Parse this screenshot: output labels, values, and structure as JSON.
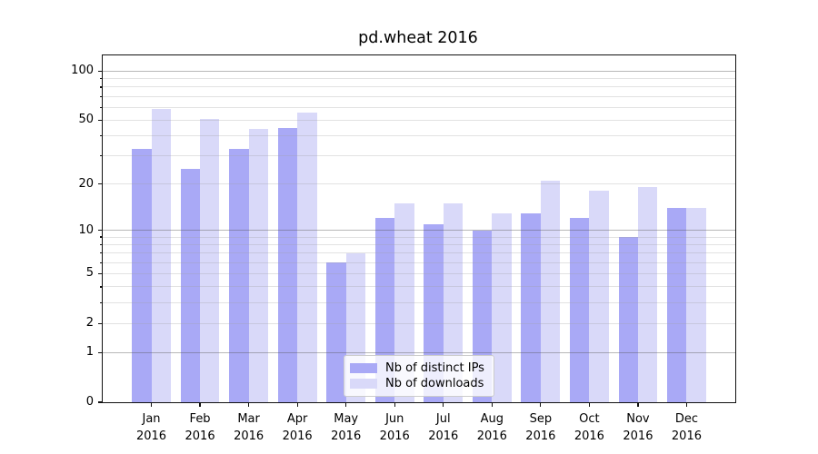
{
  "chart_data": {
    "type": "bar",
    "title": "pd.wheat 2016",
    "year": "2016",
    "categories": [
      "Jan",
      "Feb",
      "Mar",
      "Apr",
      "May",
      "Jun",
      "Jul",
      "Aug",
      "Sep",
      "Oct",
      "Nov",
      "Dec"
    ],
    "series": [
      {
        "name": "Nb of distinct IPs",
        "color": "#a9a9f6",
        "values": [
          33,
          25,
          33,
          45,
          6,
          12,
          11,
          10,
          13,
          12,
          9,
          14
        ]
      },
      {
        "name": "Nb of downloads",
        "color": "#d9d9f9",
        "values": [
          59,
          51,
          44,
          56,
          7,
          15,
          15,
          13,
          21,
          18,
          19,
          14
        ]
      }
    ],
    "yscale": "log1p",
    "ylim": [
      0,
      125
    ],
    "yticks_labeled": [
      0,
      1,
      2,
      5,
      10,
      20,
      50,
      100
    ],
    "yticks_minor": [
      3,
      4,
      6,
      7,
      8,
      9,
      30,
      40,
      60,
      70,
      80,
      90
    ],
    "gridlines_major": [
      1,
      10,
      100
    ],
    "gridlines_minor": [
      2,
      3,
      4,
      5,
      6,
      7,
      8,
      9,
      20,
      30,
      40,
      50,
      60,
      70,
      80,
      90
    ],
    "grid": true,
    "bar_width_fraction": 0.4,
    "legend": {
      "position": "lower center-left",
      "entries": [
        "Nb of distinct IPs",
        "Nb of downloads"
      ]
    }
  },
  "colors": {
    "bar_distinct_ips": "#a9a9f6",
    "bar_downloads": "#d9d9f9",
    "grid_major": "#b5b5b5",
    "grid_minor": "#e8e8e8",
    "axis_spine": "#111111",
    "text": "#000000",
    "legend_border": "#cccccc"
  }
}
